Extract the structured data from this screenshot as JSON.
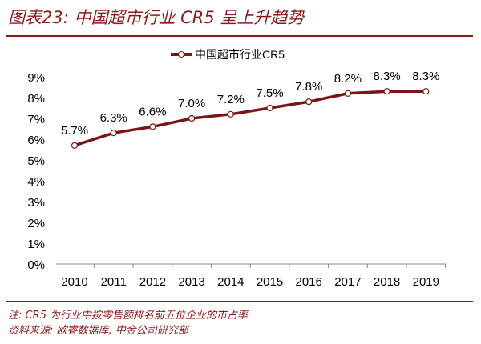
{
  "title": "图表23:  中国超市行业 CR5 呈上升趋势",
  "note": "注: CR5 为行业中按零售额排名前五位企业的市占率",
  "source": "资料来源: 欧睿数据库, 中金公司研究部",
  "colors": {
    "accent": "#8b1a1a",
    "line": "#7a1515"
  },
  "chart_data": {
    "type": "line",
    "categories": [
      "2010",
      "2011",
      "2012",
      "2013",
      "2014",
      "2015",
      "2016",
      "2017",
      "2018",
      "2019"
    ],
    "series": [
      {
        "name": "中国超市行业CR5",
        "values": [
          5.7,
          6.3,
          6.6,
          7.0,
          7.2,
          7.5,
          7.8,
          8.2,
          8.3,
          8.3
        ]
      }
    ],
    "data_labels": [
      "5.7%",
      "6.3%",
      "6.6%",
      "7.0%",
      "7.2%",
      "7.5%",
      "7.8%",
      "8.2%",
      "8.3%",
      "8.3%"
    ],
    "yticks": [
      "0%",
      "1%",
      "2%",
      "3%",
      "4%",
      "5%",
      "6%",
      "7%",
      "8%",
      "9%"
    ],
    "ylim": [
      0,
      9
    ],
    "grid": false,
    "legend": "top-center"
  }
}
